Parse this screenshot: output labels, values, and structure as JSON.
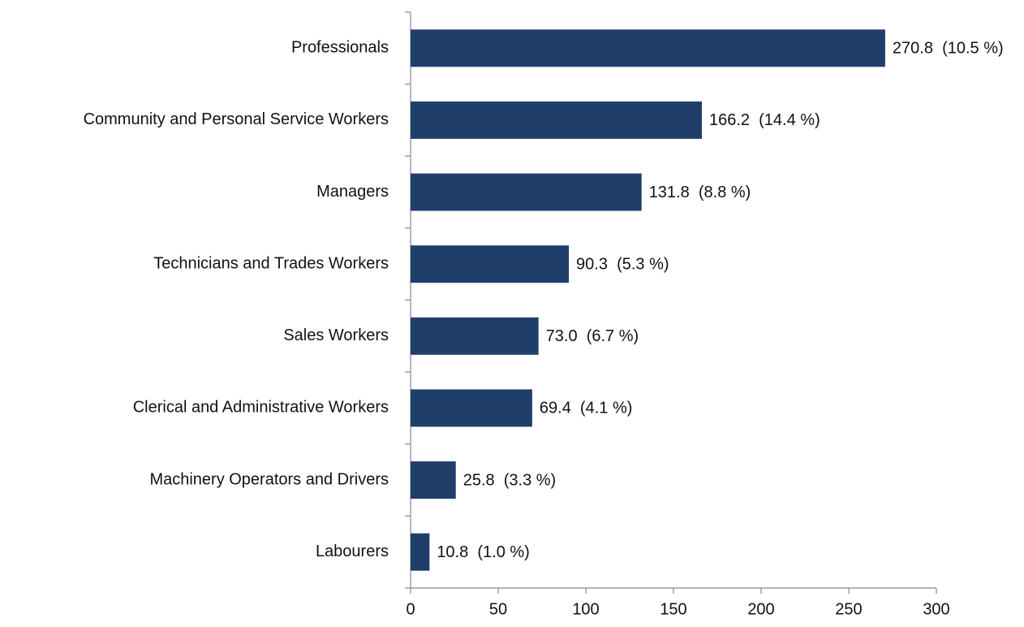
{
  "chart_data": {
    "type": "bar",
    "orientation": "horizontal",
    "categories": [
      "Professionals",
      "Community and Personal Service Workers",
      "Managers",
      "Technicians and Trades Workers",
      "Sales Workers",
      "Clerical and Administrative Workers",
      "Machinery Operators and Drivers",
      "Labourers"
    ],
    "values": [
      270.8,
      166.2,
      131.8,
      90.3,
      73.0,
      69.4,
      25.8,
      10.8
    ],
    "value_labels": [
      "270.8  (10.5 %)",
      "166.2  (14.4 %)",
      "131.8  (8.8 %)",
      "90.3  (5.3 %)",
      "73.0  (6.7 %)",
      "69.4  (4.1 %)",
      "25.8  (3.3 %)",
      "10.8  (1.0 %)"
    ],
    "color": "#203e6a",
    "xlim": [
      0,
      300
    ],
    "xticks": [
      0,
      50,
      100,
      150,
      200,
      250,
      300
    ],
    "grid": false
  }
}
